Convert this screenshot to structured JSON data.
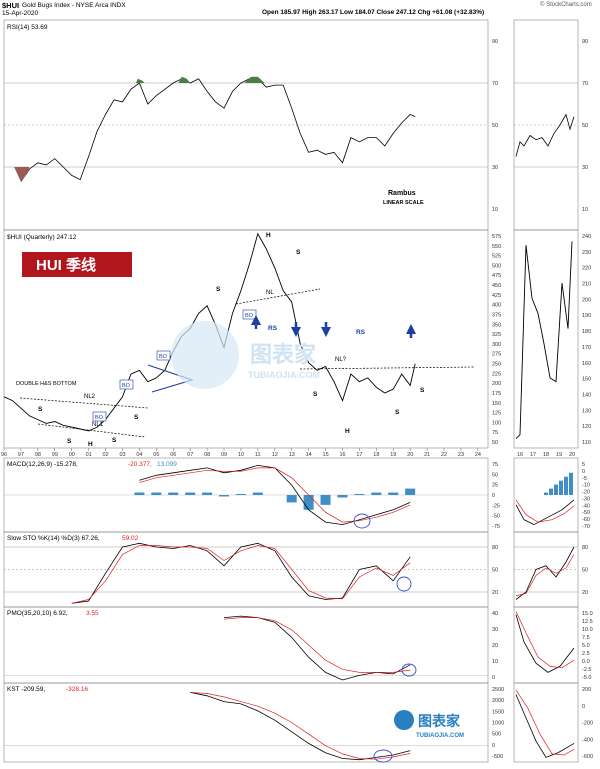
{
  "header": {
    "ticker": "$HUI",
    "index_name": "Gold Bugs Index - NYSE Arca INDX",
    "date": "15-Apr-2020",
    "ohlc": "Open 185.97  High 263.17  Low 184.07  Close 247.12  Chg +61.08 (+32.83%)",
    "watermark": "© StockCharts.com"
  },
  "colors": {
    "price_line": "#000000",
    "signal_line": "#e02020",
    "macd_histogram": "#3d8fc6",
    "rsi_overbought_fill": "#4f7a4a",
    "rsi_oversold_fill": "#9b5a5a",
    "pattern_line": "#1a3fa6",
    "arrow": "#1a3fa6",
    "badge_bg": "#b0161c",
    "marker_circle": "#3a4fd0"
  },
  "panels": {
    "rsi": {
      "label": "RSI(14) 53.69",
      "ticks": [
        "90",
        "70",
        "50",
        "30",
        "10"
      ],
      "note_title": "Rambus",
      "note_sub": "LINEAR SCALE"
    },
    "price": {
      "label": "$HUI (Quarterly) 247.12",
      "badge": "HUI 季线",
      "ticks": [
        "575",
        "550",
        "525",
        "500",
        "475",
        "450",
        "425",
        "400",
        "375",
        "350",
        "325",
        "300",
        "275",
        "250",
        "225",
        "200",
        "175",
        "150",
        "125",
        "100",
        "75",
        "50"
      ],
      "mini_ticks": [
        "240",
        "230",
        "220",
        "210",
        "200",
        "190",
        "180",
        "170",
        "160",
        "150",
        "140",
        "130",
        "120",
        "110"
      ],
      "x_labels": [
        "96",
        "97",
        "98",
        "99",
        "00",
        "01",
        "02",
        "03",
        "04",
        "05",
        "06",
        "07",
        "08",
        "09",
        "10",
        "11",
        "12",
        "13",
        "14",
        "15",
        "16",
        "17",
        "18",
        "19",
        "20",
        "21",
        "22",
        "23",
        "24"
      ],
      "mini_x_labels": [
        "16",
        "17",
        "18",
        "19",
        "20"
      ],
      "annotations": {
        "double_bottom": "DOUBLE H&S BOTTOM",
        "nl2": "NL2",
        "nl1": "NL1",
        "nl": "NL",
        "nl_q": "NL?",
        "rs": "RS",
        "s": "S",
        "h": "H",
        "bo": "BO"
      }
    },
    "macd": {
      "label": "MACD(12,26,9) -15.278,",
      "label_signal": "-20.377,",
      "label_hist": "13.099",
      "ticks": [
        "75",
        "50",
        "25",
        "0",
        "-25",
        "-50",
        "-75"
      ],
      "mini_ticks": [
        "5",
        "0",
        "-5",
        "-10",
        "-20",
        "-30",
        "-40",
        "-50",
        "-60",
        "-70"
      ]
    },
    "sto": {
      "label": "Slow STO %K(14) %D(3) 67.26,",
      "label_signal": "59.02",
      "ticks": [
        "80",
        "50",
        "20"
      ]
    },
    "pmo": {
      "label": "PMO(35,20,10) 6.92,",
      "label_signal": "3.55",
      "ticks": [
        "40",
        "30",
        "20",
        "10",
        "0"
      ],
      "mini_ticks": [
        "15.0",
        "12.5",
        "10.0",
        "7.5",
        "5.0",
        "2.5",
        "0.0",
        "-2.5",
        "-5.0"
      ]
    },
    "kst": {
      "label": "KST -209.59,",
      "label_signal": "-328.16",
      "ticks": [
        "2500",
        "2000",
        "1500",
        "1000",
        "500",
        "0",
        "-500"
      ],
      "mini_ticks": [
        "200",
        "0",
        "-200",
        "-400",
        "-600"
      ]
    }
  },
  "logo": {
    "name": "图表家",
    "domain": "TUBIAOJIA.COM"
  },
  "chart_data": [
    {
      "type": "line",
      "title": "RSI(14) 53.69",
      "ylim": [
        0,
        100
      ],
      "x": [
        1997.0,
        1997.5,
        1998.0,
        1998.5,
        1999.0,
        1999.5,
        2000.0,
        2000.5,
        2001.0,
        2001.5,
        2002.0,
        2002.5,
        2003.0,
        2003.5,
        2004.0,
        2004.5,
        2005.0,
        2005.5,
        2006.0,
        2006.5,
        2007.0,
        2007.5,
        2008.0,
        2008.5,
        2009.0,
        2009.5,
        2010.0,
        2010.5,
        2011.0,
        2011.5,
        2012.0,
        2012.5,
        2013.0,
        2013.5,
        2014.0,
        2014.5,
        2015.0,
        2015.5,
        2016.0,
        2016.5,
        2017.0,
        2017.5,
        2018.0,
        2018.5,
        2019.0,
        2019.5,
        2020.0,
        2020.3
      ],
      "series": [
        {
          "values": [
            23,
            29,
            32,
            31,
            34,
            30,
            26,
            24,
            35,
            47,
            55,
            62,
            61,
            67,
            70,
            60,
            64,
            67,
            70,
            72,
            70,
            72,
            66,
            61,
            58,
            66,
            70,
            72,
            72,
            68,
            69,
            69,
            58,
            46,
            37,
            38,
            36,
            37,
            32,
            44,
            42,
            44,
            44,
            40,
            46,
            51,
            55,
            54
          ]
        }
      ],
      "gridlines": [
        70,
        50,
        30
      ]
    },
    {
      "type": "line",
      "title": "$HUI (Quarterly) 247.12",
      "ylim": [
        25,
        600
      ],
      "x": [
        1996.0,
        1996.5,
        1997.0,
        1997.5,
        1998.0,
        1998.5,
        1999.0,
        1999.5,
        2000.0,
        2000.5,
        2001.0,
        2001.5,
        2002.0,
        2002.5,
        2003.0,
        2003.5,
        2004.0,
        2004.5,
        2005.0,
        2005.5,
        2006.0,
        2006.5,
        2007.0,
        2007.5,
        2008.0,
        2008.5,
        2009.0,
        2009.5,
        2010.0,
        2010.5,
        2011.0,
        2011.5,
        2012.0,
        2012.5,
        2013.0,
        2013.5,
        2014.0,
        2014.5,
        2015.0,
        2015.5,
        2016.0,
        2016.5,
        2017.0,
        2017.5,
        2018.0,
        2018.5,
        2019.0,
        2019.5,
        2020.0,
        2020.3
      ],
      "series": [
        {
          "values": [
            160,
            150,
            130,
            110,
            100,
            90,
            95,
            85,
            80,
            75,
            70,
            80,
            100,
            130,
            160,
            220,
            230,
            200,
            210,
            230,
            280,
            320,
            340,
            380,
            400,
            350,
            290,
            380,
            440,
            510,
            590,
            550,
            500,
            440,
            410,
            300,
            250,
            230,
            240,
            200,
            150,
            220,
            200,
            210,
            185,
            170,
            180,
            220,
            190,
            247
          ]
        }
      ]
    },
    {
      "type": "bar",
      "title": "MACD(12,26,9) -15.278, -20.377, 13.099",
      "ylim": [
        -75,
        75
      ],
      "categories": [
        "2004",
        "2005",
        "2006",
        "2007",
        "2008",
        "2009",
        "2010",
        "2011",
        "2012",
        "2013",
        "2014",
        "2015",
        "2016",
        "2017",
        "2018",
        "2019",
        "2020"
      ],
      "series": [
        {
          "name": "MACD",
          "values": [
            30,
            40,
            45,
            50,
            55,
            45,
            50,
            60,
            55,
            20,
            -30,
            -55,
            -60,
            -50,
            -40,
            -30,
            -15
          ]
        },
        {
          "name": "Signal",
          "values": [
            25,
            35,
            40,
            45,
            50,
            48,
            48,
            55,
            55,
            35,
            0,
            -35,
            -55,
            -52,
            -45,
            -35,
            -20
          ]
        },
        {
          "name": "Histogram",
          "values": [
            5,
            5,
            5,
            5,
            5,
            -3,
            2,
            5,
            0,
            -15,
            -30,
            -20,
            -5,
            2,
            5,
            5,
            13
          ]
        }
      ]
    },
    {
      "type": "line",
      "title": "Slow STO %K(14) %D(3) 67.26, 59.02",
      "ylim": [
        0,
        100
      ],
      "x": [
        2000,
        2001,
        2002,
        2003,
        2004,
        2005,
        2006,
        2007,
        2008,
        2009,
        2010,
        2011,
        2012,
        2013,
        2014,
        2015,
        2016,
        2017,
        2018,
        2019,
        2020
      ],
      "series": [
        {
          "name": "%K",
          "values": [
            5,
            8,
            45,
            80,
            85,
            80,
            78,
            82,
            75,
            55,
            80,
            85,
            75,
            40,
            15,
            10,
            12,
            50,
            55,
            35,
            67
          ]
        },
        {
          "name": "%D",
          "values": [
            5,
            10,
            35,
            70,
            82,
            82,
            80,
            80,
            78,
            62,
            75,
            82,
            78,
            50,
            22,
            12,
            11,
            40,
            52,
            42,
            59
          ]
        }
      ],
      "gridlines": [
        80,
        50,
        20
      ]
    },
    {
      "type": "line",
      "title": "PMO(35,20,10) 6.92, 3.55",
      "ylim": [
        -5,
        45
      ],
      "x": [
        2009,
        2010,
        2011,
        2012,
        2013,
        2014,
        2015,
        2016,
        2017,
        2018,
        2019,
        2020
      ],
      "series": [
        {
          "name": "PMO",
          "values": [
            38,
            39,
            38,
            35,
            25,
            12,
            2,
            -3,
            0,
            2,
            1,
            7
          ]
        },
        {
          "name": "Signal",
          "values": [
            37,
            38,
            38,
            36,
            30,
            20,
            10,
            4,
            2,
            2,
            2,
            3.5
          ]
        }
      ]
    },
    {
      "type": "line",
      "title": "KST -209.59, -328.16",
      "ylim": [
        -700,
        2700
      ],
      "x": [
        2007,
        2008,
        2009,
        2010,
        2011,
        2012,
        2013,
        2014,
        2015,
        2016,
        2017,
        2018,
        2019,
        2020
      ],
      "series": [
        {
          "name": "KST",
          "values": [
            2300,
            2150,
            1900,
            1800,
            1500,
            1100,
            600,
            100,
            -300,
            -550,
            -600,
            -500,
            -400,
            -210
          ]
        },
        {
          "name": "Signal",
          "values": [
            2300,
            2250,
            2100,
            1900,
            1700,
            1400,
            1000,
            500,
            0,
            -350,
            -550,
            -580,
            -480,
            -330
          ]
        }
      ]
    }
  ]
}
